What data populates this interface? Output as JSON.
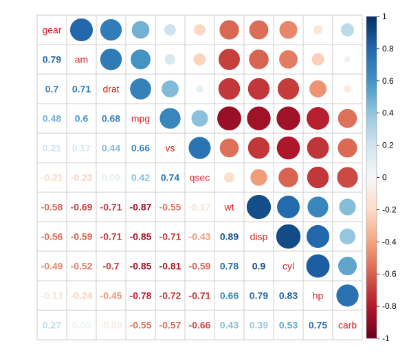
{
  "chart_data": {
    "type": "heatmap",
    "variables": [
      "gear",
      "am",
      "drat",
      "mpg",
      "vs",
      "qsec",
      "wt",
      "disp",
      "cyl",
      "hp",
      "carb"
    ],
    "matrix": [
      [
        1.0,
        0.79,
        0.7,
        0.48,
        0.21,
        -0.21,
        -0.58,
        -0.56,
        -0.49,
        -0.13,
        0.27
      ],
      [
        0.79,
        1.0,
        0.71,
        0.6,
        0.17,
        -0.23,
        -0.69,
        -0.59,
        -0.52,
        -0.24,
        0.06
      ],
      [
        0.7,
        0.71,
        1.0,
        0.68,
        0.44,
        0.09,
        -0.71,
        -0.71,
        -0.7,
        -0.45,
        -0.09
      ],
      [
        0.48,
        0.6,
        0.68,
        1.0,
        0.66,
        0.42,
        -0.87,
        -0.85,
        -0.85,
        -0.78,
        -0.55
      ],
      [
        0.21,
        0.17,
        0.44,
        0.66,
        1.0,
        0.74,
        -0.55,
        -0.71,
        -0.81,
        -0.72,
        -0.57
      ],
      [
        -0.21,
        -0.23,
        0.09,
        0.42,
        0.74,
        1.0,
        -0.17,
        -0.43,
        -0.59,
        -0.71,
        -0.66
      ],
      [
        -0.58,
        -0.69,
        -0.71,
        -0.87,
        -0.55,
        -0.17,
        1.0,
        0.89,
        0.78,
        0.66,
        0.43
      ],
      [
        -0.56,
        -0.59,
        -0.71,
        -0.85,
        -0.71,
        -0.43,
        0.89,
        1.0,
        0.9,
        0.79,
        0.39
      ],
      [
        -0.49,
        -0.52,
        -0.7,
        -0.85,
        -0.81,
        -0.59,
        0.78,
        0.9,
        1.0,
        0.83,
        0.53
      ],
      [
        -0.13,
        -0.24,
        -0.45,
        -0.78,
        -0.72,
        -0.71,
        0.66,
        0.79,
        0.83,
        1.0,
        0.75
      ],
      [
        0.27,
        0.06,
        -0.09,
        -0.55,
        -0.57,
        -0.66,
        0.43,
        0.39,
        0.53,
        0.75,
        1.0
      ]
    ],
    "lower_display": "number",
    "upper_display": "circle",
    "diagonal_display": "variable-name",
    "legend": {
      "placement": "right",
      "range": [
        -1,
        1
      ],
      "ticks": [
        "1",
        "0.8",
        "0.6",
        "0.4",
        "0.2",
        "0",
        "-0.2",
        "-0.4",
        "-0.6",
        "-0.8",
        "-1"
      ]
    },
    "colors": {
      "negative_strong": "#67001f",
      "negative_mid": "#d6604d",
      "neutral": "#f7f7f7",
      "positive_mid": "#4393c3",
      "positive_strong": "#053061",
      "diagonal_text": "#d42020",
      "grid": "#cccccc"
    }
  }
}
